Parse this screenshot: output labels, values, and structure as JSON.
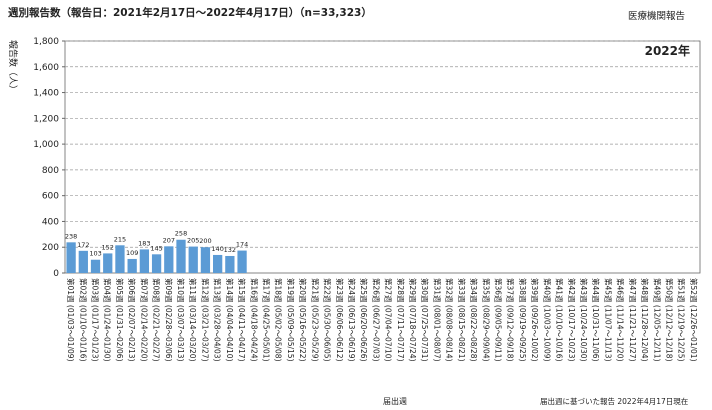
{
  "chart_data": {
    "type": "bar",
    "title": "週別報告数（報告日：2021年2月17日～2022年4月17日）（n=33,323）",
    "source": "医療機関報告",
    "annotation": "2022年",
    "y_label": "報告数（人）",
    "x_label": "届出週",
    "footnote": "届出週に基づいた報告 2022年4月17日現在",
    "color": "#5b9bd5",
    "grid": true,
    "ylim": [
      0,
      1800
    ],
    "yticks": [
      0,
      200,
      400,
      600,
      800,
      {
        "value": 1000,
        "label": "1,000"
      },
      {
        "value": 1200,
        "label": "1,200"
      },
      {
        "value": 1400,
        "label": "1,400"
      },
      {
        "value": 1600,
        "label": "1,600"
      },
      {
        "value": 1800,
        "label": "1,800"
      }
    ],
    "categories": [
      "第01週 (01/03～01/09)",
      "第02週 (01/10～01/16)",
      "第03週 (01/17～01/23)",
      "第04週 (01/24～01/30)",
      "第05週 (01/31～02/06)",
      "第06週 (02/07～02/13)",
      "第07週 (02/14～02/20)",
      "第08週 (02/21～02/27)",
      "第09週 (02/28～03/06)",
      "第10週 (03/07～03/13)",
      "第11週 (03/14～03/20)",
      "第12週 (03/21～03/27)",
      "第13週 (03/28～04/03)",
      "第14週 (04/04～04/10)",
      "第15週 (04/11～04/17)",
      "第16週 (04/18～04/24)",
      "第17週 (04/25～05/01)",
      "第18週 (05/02～05/08)",
      "第19週 (05/09～05/15)",
      "第20週 (05/16～05/22)",
      "第21週 (05/23～05/29)",
      "第22週 (05/30～06/05)",
      "第23週 (06/06～06/12)",
      "第24週 (06/13～06/19)",
      "第25週 (06/20～06/26)",
      "第26週 (06/27～07/03)",
      "第27週 (07/04～07/10)",
      "第28週 (07/11～07/17)",
      "第29週 (07/18～07/24)",
      "第30週 (07/25～07/31)",
      "第31週 (08/01～08/07)",
      "第32週 (08/08～08/14)",
      "第33週 (08/15～08/21)",
      "第34週 (08/22～08/28)",
      "第35週 (08/29～09/04)",
      "第36週 (09/05～09/11)",
      "第37週 (09/12～09/18)",
      "第38週 (09/19～09/25)",
      "第39週 (09/26～10/02)",
      "第40週 (10/03～10/09)",
      "第41週 (10/10～10/16)",
      "第42週 (10/17～10/23)",
      "第43週 (10/24～10/30)",
      "第44週 (10/31～11/06)",
      "第45週 (11/07～11/13)",
      "第46週 (11/14～11/20)",
      "第47週 (11/21～11/27)",
      "第48週 (11/28～12/04)",
      "第49週 (12/05～12/11)",
      "第50週 (12/12～12/18)",
      "第51週 (12/19～12/25)",
      "第52週 (12/26～01/01)"
    ],
    "values": [
      238,
      172,
      103,
      152,
      215,
      109,
      183,
      145,
      207,
      258,
      205,
      200,
      140,
      132,
      174,
      null,
      null,
      null,
      null,
      null,
      null,
      null,
      null,
      null,
      null,
      null,
      null,
      null,
      null,
      null,
      null,
      null,
      null,
      null,
      null,
      null,
      null,
      null,
      null,
      null,
      null,
      null,
      null,
      null,
      null,
      null,
      null,
      null,
      null,
      null,
      null,
      null
    ]
  }
}
